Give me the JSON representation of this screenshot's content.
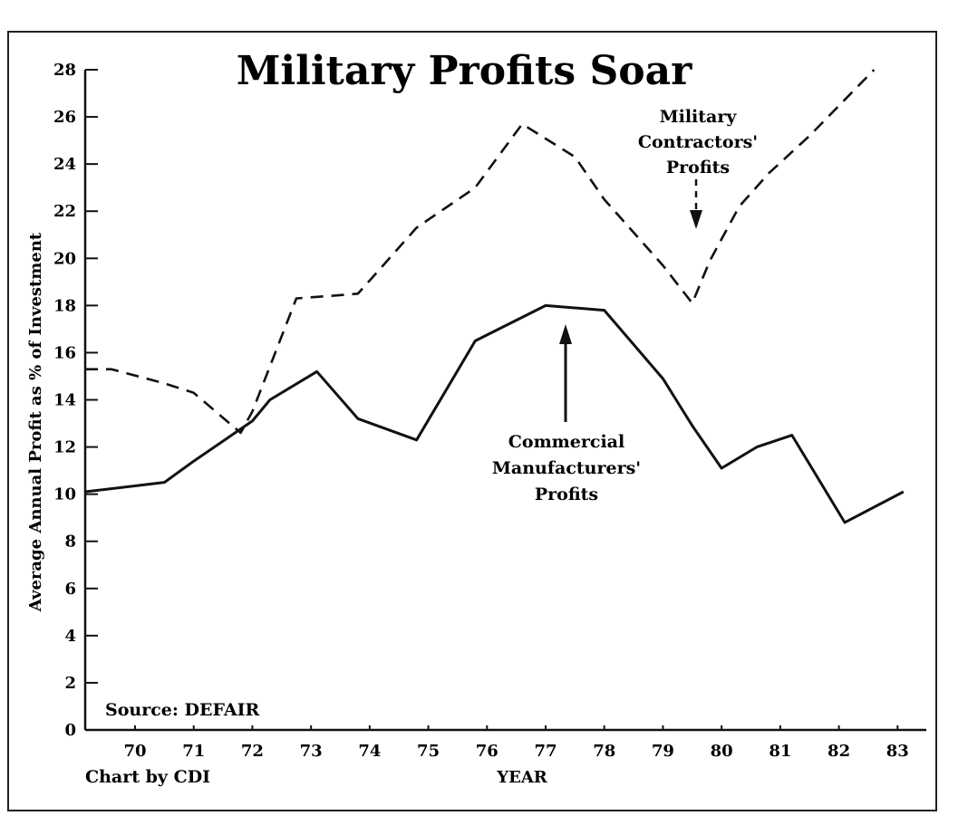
{
  "chart_data": {
    "type": "line",
    "title": "Military Profits Soar",
    "ylabel": "Average Annual Profit as % of Investment",
    "xlabel": "YEAR",
    "ylim": [
      0,
      28
    ],
    "yticks": [
      "0",
      "2",
      "4",
      "6",
      "8",
      "10",
      "12",
      "14",
      "16",
      "18",
      "20",
      "22",
      "24",
      "26",
      "28"
    ],
    "categories": [
      "70",
      "71",
      "72",
      "73",
      "74",
      "75",
      "76",
      "77",
      "78",
      "79",
      "80",
      "81",
      "82",
      "83"
    ],
    "xlim": [
      69.15,
      83.15
    ],
    "grid": false,
    "series": [
      {
        "name": "Military Contractors' Profits",
        "style": "dashed",
        "x": [
          69.15,
          69.6,
          70.5,
          71.0,
          71.8,
          72.0,
          72.75,
          73.3,
          73.8,
          74.3,
          74.8,
          75.8,
          76.6,
          77.5,
          78.0,
          79.0,
          79.5,
          79.8,
          80.3,
          80.8,
          81.5,
          82.6
        ],
        "y": [
          15.3,
          15.3,
          14.7,
          14.3,
          12.6,
          13.5,
          18.3,
          18.4,
          18.5,
          19.9,
          21.3,
          23.0,
          25.7,
          24.3,
          22.5,
          19.7,
          18.1,
          19.9,
          22.2,
          23.6,
          25.2,
          28.0
        ]
      },
      {
        "name": "Commercial Manufacturers' Profits",
        "style": "solid",
        "x": [
          69.15,
          70.5,
          71.0,
          72.0,
          72.3,
          73.1,
          73.8,
          74.8,
          75.8,
          77.0,
          78.0,
          79.0,
          79.5,
          80.0,
          80.6,
          81.2,
          82.1,
          83.1
        ],
        "y": [
          10.1,
          10.5,
          11.4,
          13.1,
          14.0,
          15.2,
          13.2,
          12.3,
          16.5,
          18.0,
          17.8,
          14.9,
          12.9,
          11.1,
          12.0,
          12.5,
          8.8,
          10.1
        ]
      }
    ],
    "annotations": {
      "military": [
        "Military",
        "Contractors'",
        "Profits"
      ],
      "commercial": [
        "Commercial",
        "Manufacturers'",
        "Profits"
      ],
      "source": "Source: DEFAIR",
      "credit": "Chart by CDI"
    }
  }
}
